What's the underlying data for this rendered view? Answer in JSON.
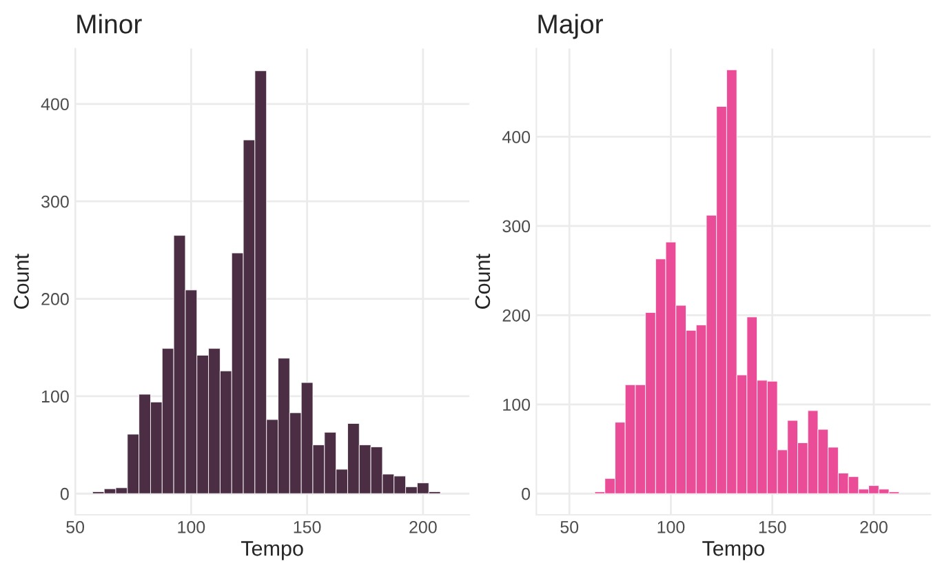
{
  "chart_data": [
    {
      "type": "histogram",
      "title": "Minor",
      "xlabel": "Tempo",
      "ylabel": "Count",
      "color": "#4b2e43",
      "bins": [
        57.5,
        62.5,
        67.5,
        72.5,
        77.5,
        82.5,
        87.5,
        92.5,
        97.5,
        102.5,
        107.5,
        112.5,
        117.5,
        122.5,
        127.5,
        132.5,
        137.5,
        142.5,
        147.5,
        152.5,
        157.5,
        162.5,
        167.5,
        172.5,
        177.5,
        182.5,
        187.5,
        192.5,
        197.5,
        202.5,
        207.5
      ],
      "values": [
        2,
        5,
        6,
        61,
        102,
        94,
        149,
        265,
        209,
        142,
        149,
        126,
        247,
        363,
        434,
        76,
        139,
        83,
        114,
        50,
        63,
        25,
        72,
        50,
        48,
        20,
        18,
        7,
        11,
        2
      ],
      "xlim": [
        50,
        220
      ],
      "xticks": [
        50,
        100,
        150,
        200
      ],
      "ylim": [
        -21.75,
        456.75
      ],
      "yticks": [
        0,
        100,
        200,
        300,
        400
      ],
      "grid": true
    },
    {
      "type": "histogram",
      "title": "Major",
      "xlabel": "Tempo",
      "ylabel": "Count",
      "color": "#ea4c97",
      "bins": [
        62.5,
        67.5,
        72.5,
        77.5,
        82.5,
        87.5,
        92.5,
        97.5,
        102.5,
        107.5,
        112.5,
        117.5,
        122.5,
        127.5,
        132.5,
        137.5,
        142.5,
        147.5,
        152.5,
        157.5,
        162.5,
        167.5,
        172.5,
        177.5,
        182.5,
        187.5,
        192.5,
        197.5,
        202.5,
        207.5,
        212.5
      ],
      "values": [
        2,
        17,
        80,
        122,
        122,
        203,
        263,
        282,
        211,
        183,
        189,
        312,
        434,
        475,
        133,
        198,
        127,
        126,
        49,
        82,
        57,
        93,
        72,
        52,
        23,
        19,
        5,
        9,
        5,
        2
      ],
      "xlim": [
        33.75,
        228
      ],
      "xticks": [
        50,
        100,
        150,
        200
      ],
      "ylim": [
        -23.75,
        498.75
      ],
      "yticks": [
        0,
        100,
        200,
        300,
        400
      ],
      "grid": true
    }
  ]
}
